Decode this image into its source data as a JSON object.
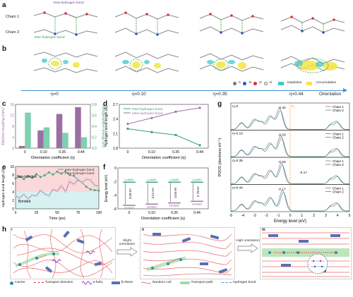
{
  "panel_labels": {
    "a": "a",
    "b": "b",
    "c": "c",
    "d": "d",
    "e": "e",
    "f": "f",
    "g": "g",
    "h": "h"
  },
  "panel_a": {
    "chain1": "Chain 1",
    "chain2": "Chain 2",
    "intra": "Intra-hydrogen bond",
    "inter": "Inter-hydrogen bond"
  },
  "panel_b": {
    "legend_atoms": [
      "C",
      "N",
      "O",
      "H"
    ],
    "legend_depletion": "Depletion",
    "legend_accumulation": "Accumulation",
    "eta_labels": [
      "η=0",
      "η=0.10",
      "η=0.35",
      "η=0.44"
    ],
    "orientation": "Orientation"
  },
  "colors": {
    "purple": "#9b6fa3",
    "teal": "#7fcfb0",
    "blue": "#3d8fd6",
    "green": "#3aa07a",
    "orange": "#f0a030",
    "pink": "#f7c9c9",
    "cyan": "#cdeeee"
  },
  "chart_data": [
    {
      "id": "c",
      "type": "bar",
      "categories": [
        "0",
        "0.10",
        "0.35",
        "0.44"
      ],
      "series": [
        {
          "name": "Electron coupling",
          "values": [
            0.8,
            6.5,
            12.5,
            15
          ]
        },
        {
          "name": "Reorganization energy",
          "values": [
            0.65,
            0.38,
            0.28,
            0.2
          ]
        }
      ],
      "xlabel": "Orientation coefficient (η)",
      "ylabel": "Electron coupling (meV)",
      "ylabel2": "Reorganization energy (eV)",
      "ylim": [
        0,
        16
      ],
      "ylim2": [
        0,
        0.8
      ],
      "yticks": [
        "0",
        "4",
        "8",
        "12",
        "16"
      ],
      "yticks2": [
        "0.0",
        "0.2",
        "0.4",
        "0.6",
        "0.8"
      ]
    },
    {
      "id": "d",
      "type": "line",
      "x": [
        "0",
        "0.10",
        "0.35",
        "0.44"
      ],
      "series": [
        {
          "name": "Inter-hydrogen bond",
          "values": [
            2.2,
            2.13,
            2.07,
            1.86
          ]
        },
        {
          "name": "Intra-hydrogen bond",
          "values": [
            2.3,
            2.42,
            2.55,
            2.63
          ]
        }
      ],
      "xlabel": "Orientation coefficient (η)",
      "ylabel": "Hydrogen bond length (Å)",
      "ylim": [
        1.8,
        2.7
      ],
      "yticks": [
        "1.8",
        "2.1",
        "2.4",
        "2.7"
      ]
    },
    {
      "id": "e",
      "type": "line",
      "x": [
        0,
        5,
        10,
        15,
        20,
        25,
        30,
        35,
        40,
        45,
        50,
        55,
        60,
        65,
        70,
        75,
        80,
        85,
        90,
        95,
        100
      ],
      "series": [
        {
          "name": "Inter-hydrogen bond",
          "values": [
            7.2,
            7.6,
            7.0,
            7.8,
            7.3,
            8.2,
            7.5,
            7.9,
            8.6,
            8.1,
            8.8,
            8.3,
            8.9,
            8.0,
            7.8,
            6.8,
            6.2,
            5.2,
            4.6,
            4.4,
            4.3
          ]
        },
        {
          "name": "Intra-hydrogen bond",
          "values": [
            3.0,
            2.6,
            3.4,
            2.4,
            3.2,
            3.1,
            4.3,
            3.5,
            3.1,
            4.6,
            4.2,
            5.4,
            4.1,
            6.5,
            5.8,
            6.9,
            6.2,
            7.0,
            6.8,
            5.6,
            5.3
          ]
        }
      ],
      "xlabel": "Time (ps)",
      "ylabel": "Hydrogen bond length (Å)",
      "ylim": [
        0,
        10
      ],
      "yticks": [
        "0",
        "2",
        "4",
        "6",
        "8",
        "10"
      ],
      "xticks": [
        "0",
        "25",
        "50",
        "75",
        "100"
      ],
      "annotations": [
        "Non-bonded",
        "Bonded"
      ]
    },
    {
      "id": "f",
      "type": "bar",
      "categories": [
        "0",
        "0.10",
        "0.35",
        "0.44"
      ],
      "lumo": [
        -2.1,
        -2.1,
        -2.1,
        -2.1
      ],
      "homo": [
        -5.49,
        -5.31,
        -5.14,
        -4.89
      ],
      "gaps": [
        "3.39 eV",
        "3.21 eV",
        "3.04 eV",
        "2.79 eV"
      ],
      "lumo_label": "LUMO",
      "homo_label": "HOMO",
      "xlabel": "Orientation coefficient (η)",
      "ylabel": "Energy level (eV)",
      "ylim": [
        -6,
        0
      ],
      "yticks": [
        "0",
        "-2",
        "-4",
        "-6"
      ]
    },
    {
      "id": "g",
      "type": "line",
      "panels": [
        {
          "label": "η=0",
          "peak": "-0.42"
        },
        {
          "label": "η=0.10",
          "peak": "-0.20"
        },
        {
          "label": "η=0.35",
          "peak": "-0.20",
          "peak2": "-0.17"
        },
        {
          "label": "η=0.44",
          "peak": "-0.17"
        }
      ],
      "series": [
        {
          "name": "Chain 1"
        },
        {
          "name": "Chain 2"
        }
      ],
      "ef": "E₁",
      "xlabel": "Energy level (eV)",
      "ylabel": "PDOS (electrons eV⁻¹)",
      "xlim": [
        -5,
        5
      ],
      "xticks": [
        "-5",
        "-4",
        "-3",
        "-2",
        "-1",
        "0",
        "1",
        "2",
        "3",
        "4",
        "5"
      ]
    }
  ],
  "panel_h": {
    "subs": [
      "i",
      "ii",
      "iii"
    ],
    "arrow1": "Slight orientation",
    "arrow2": "High orientation",
    "legend": [
      "Carrier",
      "Transport direction",
      "α-helix",
      "β-sheet",
      "Random coil",
      "Transport path",
      "Hydrogen bond"
    ]
  }
}
